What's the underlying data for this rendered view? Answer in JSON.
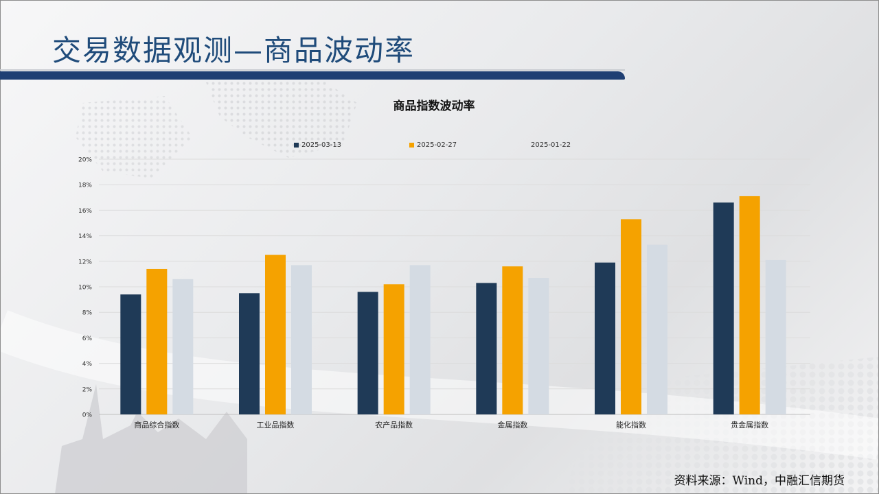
{
  "slide": {
    "title": "交易数据观测—商品波动率",
    "source": "资料来源：Wind，中融汇信期货"
  },
  "colors": {
    "series": [
      "#1f3a57",
      "#f5a200",
      "#d4dbe3"
    ],
    "title_bar": "#1f3f73",
    "title_text": "#1f4b7a"
  },
  "chart_data": {
    "type": "bar",
    "title": "商品指数波动率",
    "categories": [
      "商品综合指数",
      "工业品指数",
      "农产品指数",
      "金属指数",
      "能化指数",
      "贵金属指数"
    ],
    "series": [
      {
        "name": "2025-03-13",
        "values": [
          9.4,
          9.5,
          9.6,
          10.3,
          11.9,
          16.6
        ]
      },
      {
        "name": "2025-02-27",
        "values": [
          11.4,
          12.5,
          10.2,
          11.6,
          15.3,
          17.1
        ]
      },
      {
        "name": "2025-01-22",
        "values": [
          10.6,
          11.7,
          11.7,
          10.7,
          13.3,
          12.1
        ]
      }
    ],
    "ylim": [
      0,
      20
    ],
    "yticks": [
      "0%",
      "2%",
      "4%",
      "6%",
      "8%",
      "10%",
      "12%",
      "14%",
      "16%",
      "18%",
      "20%"
    ],
    "grid": true,
    "legend_position": "top"
  }
}
